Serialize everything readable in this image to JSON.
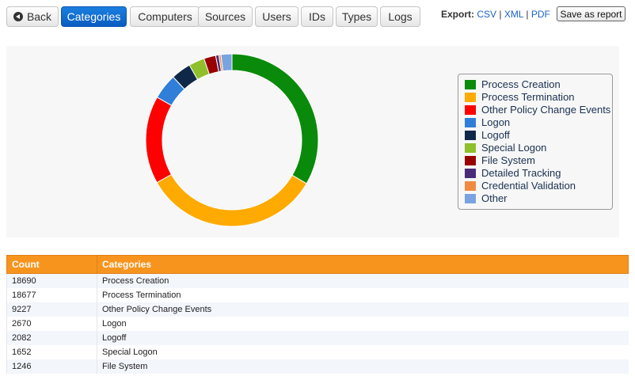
{
  "nav": {
    "back": "Back",
    "tabs": [
      "Categories",
      "Computers",
      "Sources",
      "Users",
      "IDs",
      "Types",
      "Logs"
    ],
    "active": "Categories"
  },
  "export": {
    "label": "Export:",
    "csv": "CSV",
    "xml": "XML",
    "pdf": "PDF",
    "sep": "|"
  },
  "report_button": "Save as report",
  "chart_data": {
    "type": "pie",
    "donut": true,
    "legend_position": "right",
    "slices": [
      {
        "label": "Process Creation",
        "value": 18690,
        "color": "#0a8a0a"
      },
      {
        "label": "Process Termination",
        "value": 18677,
        "color": "#ffaa00"
      },
      {
        "label": "Other Policy Change Events",
        "value": 9227,
        "color": "#ff0000"
      },
      {
        "label": "Logon",
        "value": 2670,
        "color": "#2f7fd8"
      },
      {
        "label": "Logoff",
        "value": 2082,
        "color": "#102848"
      },
      {
        "label": "Special Logon",
        "value": 1652,
        "color": "#8fbf2a"
      },
      {
        "label": "File System",
        "value": 1246,
        "color": "#990000"
      },
      {
        "label": "Detailed Tracking",
        "value": 330,
        "color": "#4b2a7a"
      },
      {
        "label": "Credential Validation",
        "value": 220,
        "color": "#f08a40"
      },
      {
        "label": "Other",
        "value": 1150,
        "color": "#79a3e0"
      }
    ]
  },
  "table": {
    "headers": [
      "Count",
      "Categories"
    ],
    "rows": [
      [
        "18690",
        "Process Creation"
      ],
      [
        "18677",
        "Process Termination"
      ],
      [
        "9227",
        "Other Policy Change Events"
      ],
      [
        "2670",
        "Logon"
      ],
      [
        "2082",
        "Logoff"
      ],
      [
        "1652",
        "Special Logon"
      ],
      [
        "1246",
        "File System"
      ]
    ]
  }
}
